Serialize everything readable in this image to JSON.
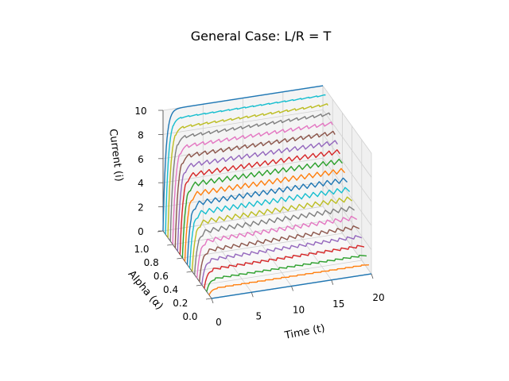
{
  "chart_data": {
    "type": "line",
    "title": "General Case: L/R = T",
    "xlabel": "Time (t)",
    "ylabel": "Alpha (α)",
    "zlabel": "Current (i)",
    "xlim": [
      0,
      20
    ],
    "ylim": [
      0,
      1
    ],
    "zlim": [
      0,
      10
    ],
    "x_ticks": [
      "0",
      "5",
      "10",
      "15",
      "20"
    ],
    "y_ticks": [
      "0.0",
      "0.2",
      "0.4",
      "0.6",
      "0.8",
      "1.0"
    ],
    "z_ticks": [
      "0",
      "2",
      "4",
      "6",
      "8",
      "10"
    ],
    "grid": true,
    "series_count": 21,
    "alpha_values": [
      0.0,
      0.05,
      0.1,
      0.15,
      0.2,
      0.25,
      0.3,
      0.35,
      0.4,
      0.45,
      0.5,
      0.55,
      0.6,
      0.65,
      0.7,
      0.75,
      0.8,
      0.85,
      0.9,
      0.95,
      1.0
    ],
    "period_T": 1,
    "peak_current": 10,
    "colors": [
      "#1f77b4",
      "#ff7f0e",
      "#2ca02c",
      "#d62728",
      "#9467bd",
      "#8c564b",
      "#e377c2",
      "#7f7f7f",
      "#bcbd22",
      "#17becf"
    ]
  }
}
